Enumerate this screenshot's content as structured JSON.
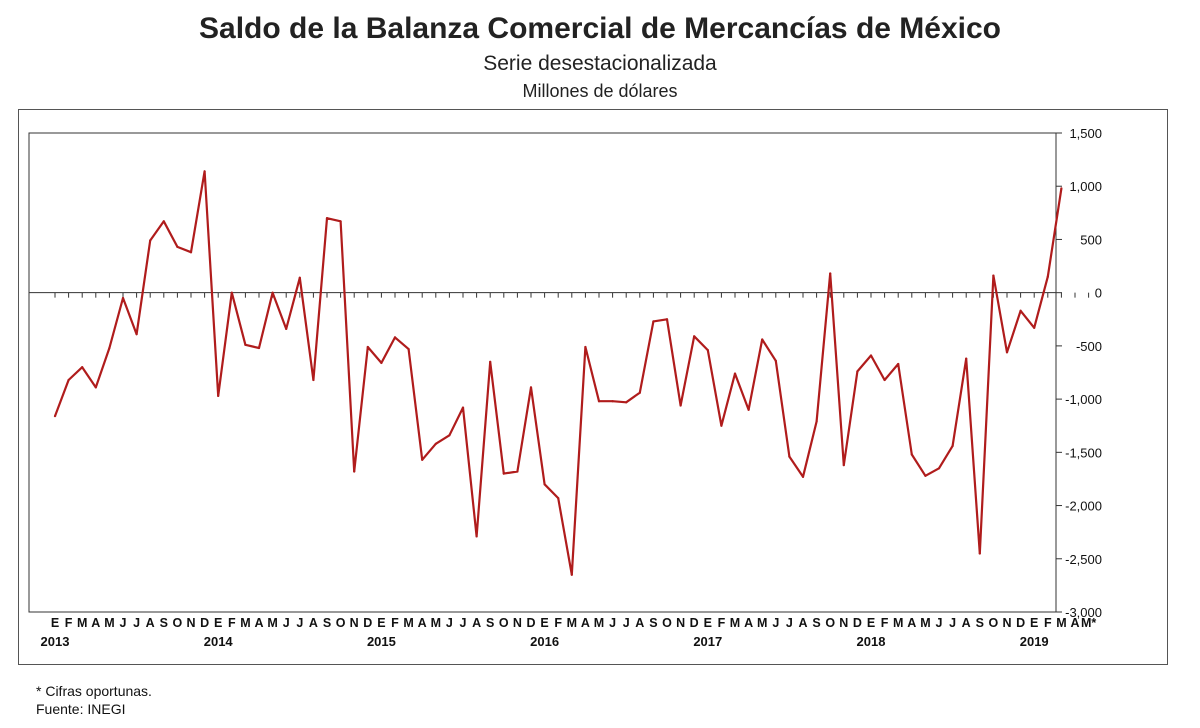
{
  "header": {
    "title": "Saldo de la Balanza Comercial de Mercancías de México",
    "subtitle": "Serie desestacionalizada",
    "units": "Millones de dólares"
  },
  "footer": {
    "note": "* Cifras oportunas.",
    "source": "Fuente: INEGI"
  },
  "chart_data": {
    "type": "line",
    "title": "Saldo de la Balanza Comercial de Mercancías de México",
    "subtitle": "Serie desestacionalizada",
    "ylabel": "Millones de dólares",
    "ylim": [
      -3000,
      1500
    ],
    "yticks": [
      1500,
      1000,
      500,
      0,
      -500,
      -1000,
      -1500,
      -2000,
      -2500,
      -3000
    ],
    "ytick_labels": [
      "1,500",
      "1,000",
      "500",
      "0",
      "-500",
      "-1,000",
      "-1,500",
      "-2,000",
      "-2,500",
      "-3,000"
    ],
    "y_axis_position": "right",
    "grid": false,
    "line_color": "#b01c1c",
    "month_labels": [
      "E",
      "F",
      "M",
      "A",
      "M",
      "J",
      "J",
      "A",
      "S",
      "O",
      "N",
      "D",
      "E",
      "F",
      "M",
      "A",
      "M",
      "J",
      "J",
      "A",
      "S",
      "O",
      "N",
      "D",
      "E",
      "F",
      "M",
      "A",
      "M",
      "J",
      "J",
      "A",
      "S",
      "O",
      "N",
      "D",
      "E",
      "F",
      "M",
      "A",
      "M",
      "J",
      "J",
      "A",
      "S",
      "O",
      "N",
      "D",
      "E",
      "F",
      "M",
      "A",
      "M",
      "J",
      "J",
      "A",
      "S",
      "O",
      "N",
      "D",
      "E",
      "F",
      "M",
      "A",
      "M",
      "J",
      "J",
      "A",
      "S",
      "O",
      "N",
      "D",
      "E",
      "F",
      "M",
      "A",
      "M*"
    ],
    "year_labels": [
      "2013",
      "2014",
      "2015",
      "2016",
      "2017",
      "2018",
      "2019"
    ],
    "series": [
      {
        "values": [
          -1160,
          -820,
          -700,
          -890,
          -520,
          -50,
          -390,
          490,
          670,
          430,
          380,
          1140,
          -970,
          0,
          -490,
          -520,
          0,
          -340,
          140,
          -820,
          700,
          670,
          -1680,
          -510,
          -660,
          -420,
          -530,
          -1570,
          -1420,
          -1340,
          -1080,
          -2290,
          -650,
          -1700,
          -1680,
          -890,
          -1800,
          -1930,
          -2650,
          -510,
          -1020,
          -1020,
          -1030,
          -940,
          -270,
          -250,
          -1060,
          -410,
          -540,
          -1250,
          -760,
          -1100,
          -440,
          -640,
          -1540,
          -1730,
          -1210,
          180,
          -1620,
          -740,
          -590,
          -820,
          -670,
          -1520,
          -1720,
          -1650,
          -1440,
          -620,
          -2450,
          160,
          -560,
          -170,
          -330,
          150,
          980
        ]
      }
    ]
  }
}
